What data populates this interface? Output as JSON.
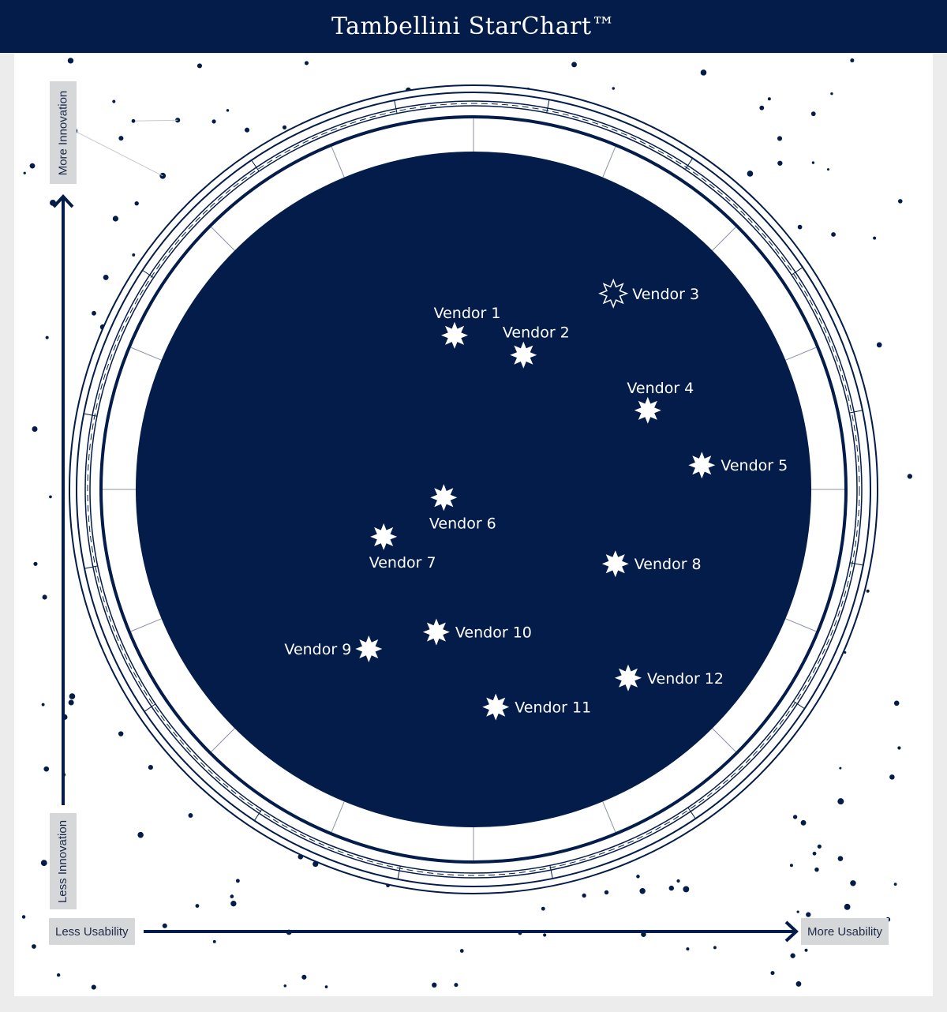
{
  "header": {
    "title": "Tambellini StarChart™"
  },
  "axes": {
    "y_top": "More Innovation",
    "y_bottom": "Less Innovation",
    "x_left": "Less Usability",
    "x_right": "More Usability"
  },
  "colors": {
    "navy": "#031c49",
    "background": "#ececec",
    "label_box": "#d6d7d9",
    "star": "#ffffff",
    "constellation_line": "#c8c9cc"
  },
  "chart_data": {
    "type": "scatter",
    "title": "Tambellini StarChart™",
    "x_range_labels": [
      "Less Usability",
      "More Usability"
    ],
    "y_range_labels": [
      "Less Innovation",
      "More Innovation"
    ],
    "xlim": [
      0,
      100
    ],
    "ylim": [
      0,
      100
    ],
    "grid": false,
    "marker": "8-point-star",
    "points": [
      {
        "label": "Vendor 1",
        "x": 47.2,
        "y": 72.8,
        "label_pos": "above",
        "style": "filled"
      },
      {
        "label": "Vendor 2",
        "x": 57.4,
        "y": 69.9,
        "label_pos": "above",
        "style": "filled"
      },
      {
        "label": "Vendor 3",
        "x": 70.7,
        "y": 79.0,
        "label_pos": "right",
        "style": "outline"
      },
      {
        "label": "Vendor 4",
        "x": 75.8,
        "y": 61.7,
        "label_pos": "above",
        "style": "filled"
      },
      {
        "label": "Vendor 5",
        "x": 83.8,
        "y": 53.6,
        "label_pos": "right",
        "style": "filled"
      },
      {
        "label": "Vendor 6",
        "x": 45.6,
        "y": 48.8,
        "label_pos": "below",
        "style": "filled"
      },
      {
        "label": "Vendor 7",
        "x": 36.7,
        "y": 43.0,
        "label_pos": "below",
        "style": "filled"
      },
      {
        "label": "Vendor 8",
        "x": 71.0,
        "y": 39.0,
        "label_pos": "right",
        "style": "filled"
      },
      {
        "label": "Vendor 9",
        "x": 34.5,
        "y": 26.4,
        "label_pos": "left",
        "style": "filled"
      },
      {
        "label": "Vendor 10",
        "x": 44.5,
        "y": 28.9,
        "label_pos": "right",
        "style": "filled"
      },
      {
        "label": "Vendor 11",
        "x": 53.3,
        "y": 17.8,
        "label_pos": "right",
        "style": "filled"
      },
      {
        "label": "Vendor 12",
        "x": 72.9,
        "y": 22.1,
        "label_pos": "right",
        "style": "filled"
      }
    ]
  }
}
